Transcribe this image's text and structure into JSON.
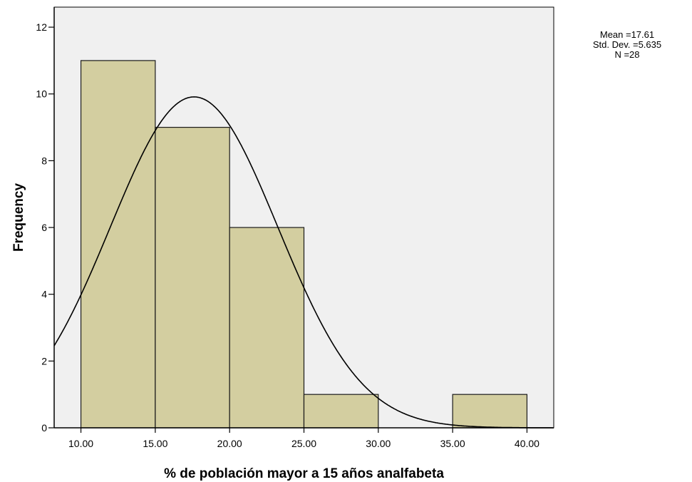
{
  "chart_data": {
    "type": "bar",
    "variant": "histogram-with-normal-curve",
    "xlabel": "% de población mayor a 15 años analfabeta",
    "ylabel": "Frequency",
    "xlim": [
      8.2,
      41.8
    ],
    "ylim": [
      0,
      12.6
    ],
    "x_ticks": [
      10,
      15,
      20,
      25,
      30,
      35,
      40
    ],
    "x_tick_labels": [
      "10.00",
      "15.00",
      "20.00",
      "25.00",
      "30.00",
      "35.00",
      "40.00"
    ],
    "y_ticks": [
      0,
      2,
      4,
      6,
      8,
      10,
      12
    ],
    "y_tick_labels": [
      "0",
      "2",
      "4",
      "6",
      "8",
      "10",
      "12"
    ],
    "bins": [
      {
        "start": 10,
        "end": 15,
        "count": 11
      },
      {
        "start": 15,
        "end": 20,
        "count": 9
      },
      {
        "start": 20,
        "end": 25,
        "count": 6
      },
      {
        "start": 25,
        "end": 30,
        "count": 1
      },
      {
        "start": 30,
        "end": 35,
        "count": 0
      },
      {
        "start": 35,
        "end": 40,
        "count": 1
      }
    ],
    "normal_curve": {
      "mean": 17.61,
      "std_dev": 5.635,
      "n": 28,
      "bin_width": 5
    },
    "stats_labels": [
      "Mean =17.61",
      "Std. Dev. =5.635",
      "N =28"
    ],
    "grid": false,
    "colors": {
      "bar_fill": "#d3cea0",
      "bar_stroke": "#1a1a1a",
      "plot_bg": "#f0f0f0",
      "curve": "#000000"
    }
  }
}
